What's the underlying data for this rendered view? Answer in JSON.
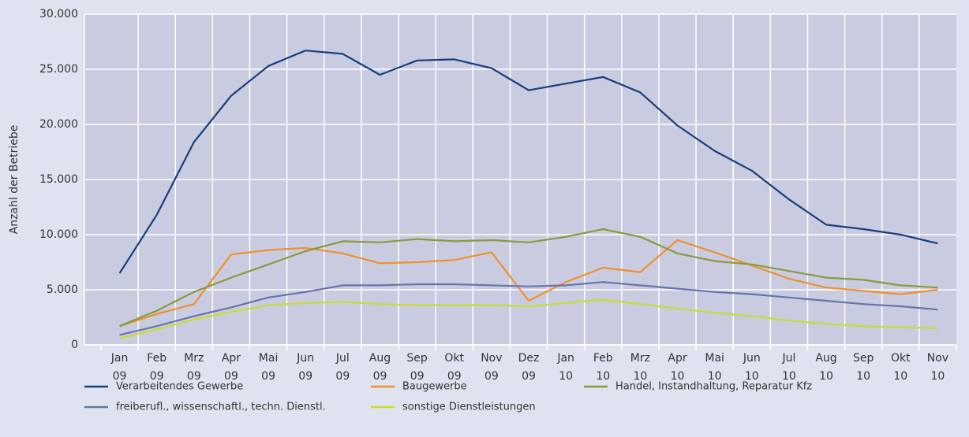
{
  "chart_data": {
    "type": "line",
    "y_label": "Anzahl der Betriebe",
    "categories": [
      [
        "Jan",
        "09"
      ],
      [
        "Feb",
        "09"
      ],
      [
        "Mrz",
        "09"
      ],
      [
        "Apr",
        "09"
      ],
      [
        "Mai",
        "09"
      ],
      [
        "Jun",
        "09"
      ],
      [
        "Jul",
        "09"
      ],
      [
        "Aug",
        "09"
      ],
      [
        "Sep",
        "09"
      ],
      [
        "Okt",
        "09"
      ],
      [
        "Nov",
        "09"
      ],
      [
        "Dez",
        "09"
      ],
      [
        "Jan",
        "10"
      ],
      [
        "Feb",
        "10"
      ],
      [
        "Mrz",
        "10"
      ],
      [
        "Apr",
        "10"
      ],
      [
        "Mai",
        "10"
      ],
      [
        "Jun",
        "10"
      ],
      [
        "Jul",
        "10"
      ],
      [
        "Aug",
        "10"
      ],
      [
        "Sep",
        "10"
      ],
      [
        "Okt",
        "10"
      ],
      [
        "Nov",
        "10"
      ]
    ],
    "ylim": [
      0,
      30000
    ],
    "yticks": [
      0,
      {
        "value": 5000,
        "label": "5.000"
      },
      {
        "value": 10000,
        "label": "10.000"
      },
      {
        "value": 15000,
        "label": "15.000"
      },
      {
        "value": 20000,
        "label": "20.000"
      },
      {
        "value": 25000,
        "label": "25.000"
      },
      {
        "value": 30000,
        "label": "30.000"
      }
    ],
    "grid": true,
    "series": [
      {
        "name": "Verarbeitendes Gewerbe",
        "color": "#153f7c",
        "values": [
          6500,
          11800,
          18400,
          22600,
          25300,
          26700,
          26400,
          24500,
          25800,
          25900,
          25100,
          23100,
          23700,
          24300,
          22900,
          19900,
          17600,
          15800,
          13200,
          10900,
          10500,
          10000,
          9200
        ]
      },
      {
        "name": "Baugewerbe",
        "color": "#f0902a",
        "values": [
          1700,
          2800,
          3700,
          8200,
          8600,
          8800,
          8300,
          7400,
          7500,
          7700,
          8400,
          4000,
          5700,
          7000,
          6600,
          9500,
          8400,
          7200,
          6000,
          5200,
          4900,
          4600,
          5000
        ]
      },
      {
        "name": "Handel, Instandhaltung, Reparatur Kfz",
        "color": "#8a9a3c",
        "values": [
          1700,
          3100,
          4800,
          6100,
          7300,
          8500,
          9400,
          9300,
          9600,
          9400,
          9500,
          9300,
          9800,
          10500,
          9800,
          8300,
          7600,
          7300,
          6700,
          6100,
          5900,
          5400,
          5200
        ]
      },
      {
        "name": "freiberufl., wissenschaftl., techn. Dienstl.",
        "color": "#6674aa",
        "values": [
          900,
          1700,
          2600,
          3400,
          4300,
          4800,
          5400,
          5400,
          5500,
          5500,
          5400,
          5300,
          5400,
          5700,
          5400,
          5100,
          4800,
          4600,
          4300,
          4000,
          3700,
          3500,
          3200
        ]
      },
      {
        "name": "sonstige Dienstleistungen",
        "color": "#c8dc32",
        "values": [
          600,
          1400,
          2300,
          3000,
          3600,
          3800,
          3900,
          3700,
          3600,
          3600,
          3600,
          3500,
          3800,
          4100,
          3700,
          3300,
          2900,
          2600,
          2200,
          1900,
          1700,
          1600,
          1500
        ]
      }
    ]
  }
}
